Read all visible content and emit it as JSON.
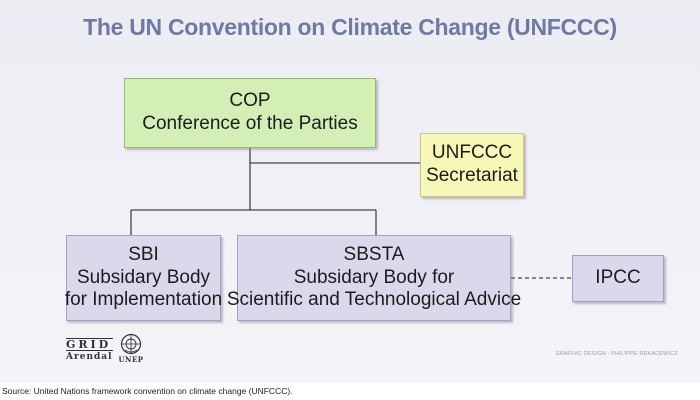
{
  "title": "The UN Convention on Climate Change (UNFCCC)",
  "nodes": {
    "cop": {
      "line1": "COP",
      "line2": "Conference of the Parties"
    },
    "secretariat": {
      "line1": "UNFCCC",
      "line2": "Secretariat"
    },
    "sbi": {
      "line1": "SBI",
      "line2": "Subsidary Body",
      "line3": "for Implementation"
    },
    "sbsta": {
      "line1": "SBSTA",
      "line2": "Subsidary Body for",
      "line3": "Scientific and Technological Advice"
    },
    "ipcc": {
      "line1": "IPCC"
    }
  },
  "logos": {
    "grid_top": "GRID",
    "grid_bottom": "Arendal",
    "unep": "UNEP"
  },
  "credit": "GRAPHIC DESIGN : PHILIPPE REKACEWICZ",
  "source": "Source: United Nations framework convention on climate change (UNFCCC).",
  "colors": {
    "title": "#6e7aa3",
    "cop_fill": "#d3efb6",
    "secretariat_fill": "#f7f7b8",
    "subsidiary_fill": "#ddd7ec",
    "connector": "#444444"
  }
}
